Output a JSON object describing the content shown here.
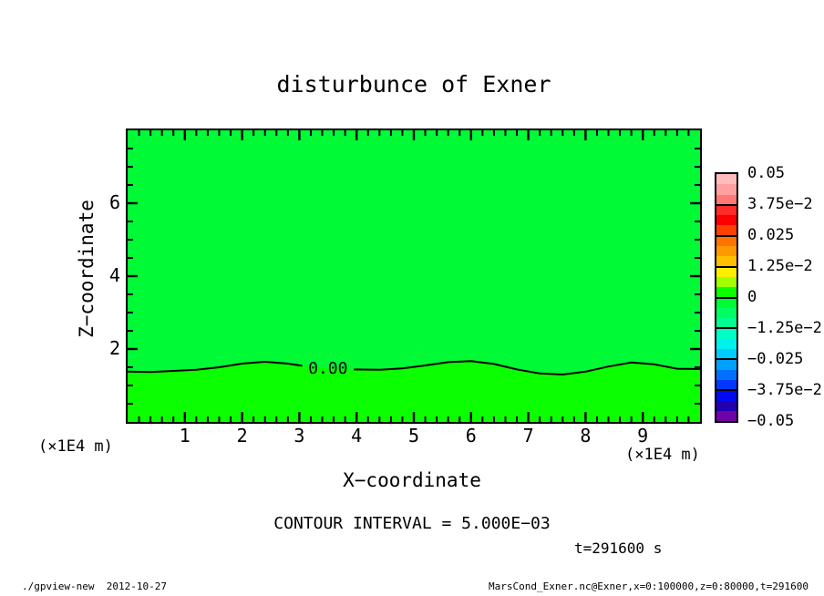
{
  "title": "disturbunce of Exner",
  "plot": {
    "xlabel": "X−coordinate",
    "ylabel": "Z−coordinate",
    "x_unit_left": "(×1E4 m)",
    "x_unit_right": "(×1E4 m)",
    "contour_label": "0.00",
    "x_ticks": [
      1,
      2,
      3,
      4,
      5,
      6,
      7,
      8,
      9
    ],
    "y_ticks": [
      2,
      4,
      6
    ],
    "region_upper_color": "#00fa36",
    "region_lower_color": "#0cff00"
  },
  "colorbar": {
    "labels": [
      "0.05",
      "3.75e−2",
      "0.025",
      "1.25e−2",
      "0",
      "−1.25e−2",
      "−0.025",
      "−3.75e−2",
      "−0.05"
    ],
    "bands": [
      "#ffbcbc",
      "#ffa0a0",
      "#ff7878",
      "#ff2a2a",
      "#fa0000",
      "#ff4000",
      "#ff7300",
      "#ff9900",
      "#ffbf00",
      "#ffee00",
      "#a0ff00",
      "#0cff00",
      "#00fa36",
      "#00fd62",
      "#00ff90",
      "#00ffc4",
      "#00f0ee",
      "#00ccff",
      "#00a0ff",
      "#0070ff",
      "#0038ff",
      "#0008f4",
      "#2200b0",
      "#7000a8"
    ]
  },
  "annotations": {
    "contour_interval": "CONTOUR INTERVAL = 5.000E−03",
    "time": "t=291600 s"
  },
  "footer": {
    "left": "./gpview-new  2012-10-27",
    "right": "MarsCond_Exner.nc@Exner,x=0:100000,z=0:80000,t=291600"
  },
  "chart_data": {
    "type": "heatmap",
    "title": "disturbunce of Exner",
    "xlabel": "X−coordinate",
    "ylabel": "Z−coordinate",
    "axis_units": "×1E4 m",
    "xlim": [
      0,
      10
    ],
    "ylim": [
      0,
      8
    ],
    "x_minor_step": 0.2,
    "y_minor_step": 0.5,
    "contour_interval": 0.005,
    "colorbar_tick_values": [
      0.05,
      0.0375,
      0.025,
      0.0125,
      0,
      -0.0125,
      -0.025,
      -0.0375,
      -0.05
    ],
    "field_summary": "disturbance ~0 everywhere: slightly negative above the zero contour (z≈1.5×1E4 m), slightly positive below it",
    "zero_contour": {
      "x": [
        0,
        0.4,
        0.8,
        1.2,
        1.6,
        2.0,
        2.4,
        2.8,
        3.05,
        3.4,
        3.95,
        4.4,
        4.8,
        5.2,
        5.6,
        6.0,
        6.4,
        6.8,
        7.2,
        7.6,
        8.0,
        8.4,
        8.8,
        9.2,
        9.6,
        10
      ],
      "z": [
        1.38,
        1.37,
        1.4,
        1.43,
        1.5,
        1.6,
        1.65,
        1.6,
        1.54,
        1.49,
        1.44,
        1.43,
        1.47,
        1.55,
        1.64,
        1.67,
        1.59,
        1.44,
        1.33,
        1.3,
        1.38,
        1.52,
        1.63,
        1.58,
        1.46,
        1.45
      ]
    },
    "contour_label_level": "0.00",
    "label_gap_x": [
      3.1,
      3.9
    ]
  }
}
